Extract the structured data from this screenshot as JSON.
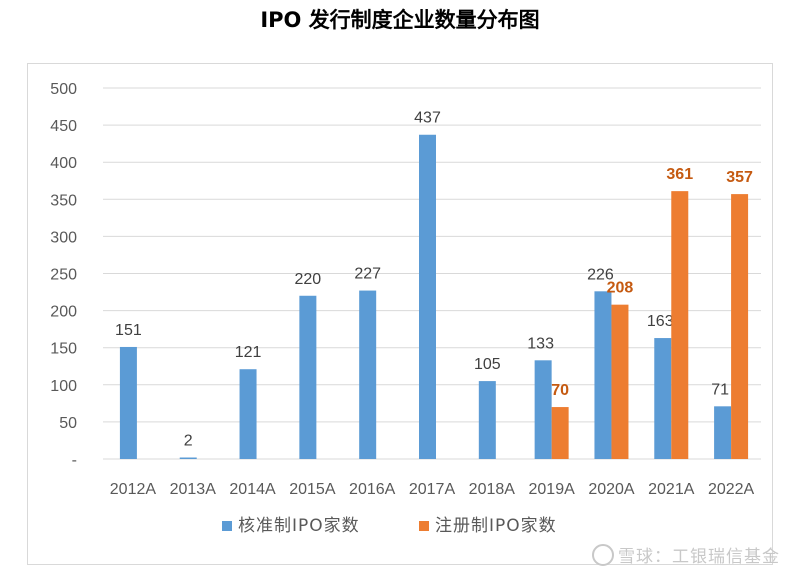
{
  "title": "IPO 发行制度企业数量分布图",
  "watermark": "雪球：工银瑞信基金",
  "chart_data": {
    "type": "bar",
    "title": "IPO 发行制度企业数量分布图",
    "categories": [
      "2012A",
      "2013A",
      "2014A",
      "2015A",
      "2016A",
      "2017A",
      "2018A",
      "2019A",
      "2020A",
      "2021A",
      "2022A"
    ],
    "series": [
      {
        "name": "核准制IPO家数",
        "color": "#5b9bd5",
        "label_color": "#404040",
        "label_bold": false,
        "values": [
          151,
          2,
          121,
          220,
          227,
          437,
          105,
          133,
          226,
          163,
          71
        ]
      },
      {
        "name": "注册制IPO家数",
        "color": "#ed7d31",
        "label_color": "#c55a11",
        "label_bold": true,
        "values": [
          null,
          null,
          null,
          null,
          null,
          null,
          null,
          70,
          208,
          361,
          357
        ]
      }
    ],
    "yticks": [
      "-",
      "50",
      "100",
      "150",
      "200",
      "250",
      "300",
      "350",
      "400",
      "450",
      "500"
    ],
    "ylim": [
      0,
      500
    ],
    "grid": true,
    "legend_position": "bottom"
  }
}
